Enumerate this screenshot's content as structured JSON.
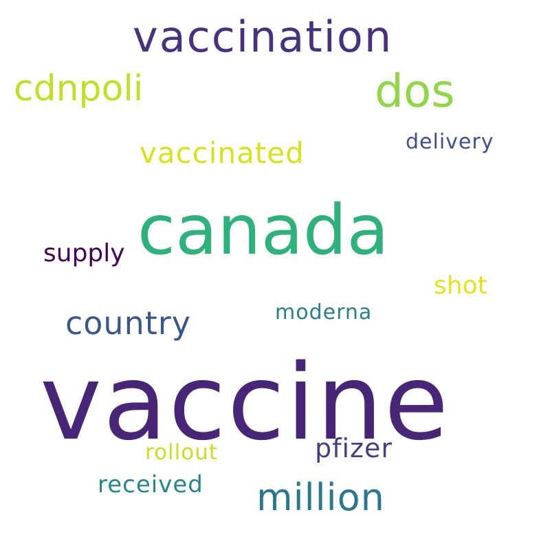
{
  "word_cloud": {
    "words": [
      {
        "key": "vaccine",
        "text": "vaccine",
        "color": "#472677"
      },
      {
        "key": "canada",
        "text": "canada",
        "color": "#2db27d"
      },
      {
        "key": "vaccination",
        "text": "vaccination",
        "color": "#46327e"
      },
      {
        "key": "dos",
        "text": "dos",
        "color": "#8fd744"
      },
      {
        "key": "cdnpoli",
        "text": "cdnpoli",
        "color": "#c2df23"
      },
      {
        "key": "vaccinated",
        "text": "vaccinated",
        "color": "#d8e219"
      },
      {
        "key": "delivery",
        "text": "delivery",
        "color": "#3b528b"
      },
      {
        "key": "supply",
        "text": "supply",
        "color": "#440154"
      },
      {
        "key": "shot",
        "text": "shot",
        "color": "#e5e419"
      },
      {
        "key": "country",
        "text": "country",
        "color": "#39568c"
      },
      {
        "key": "moderna",
        "text": "moderna",
        "color": "#277f8e"
      },
      {
        "key": "pfizer",
        "text": "pfizer",
        "color": "#433e85"
      },
      {
        "key": "rollout",
        "text": "rollout",
        "color": "#c8e020"
      },
      {
        "key": "received",
        "text": "received",
        "color": "#24868e"
      },
      {
        "key": "million",
        "text": "million",
        "color": "#2a788e"
      }
    ]
  }
}
